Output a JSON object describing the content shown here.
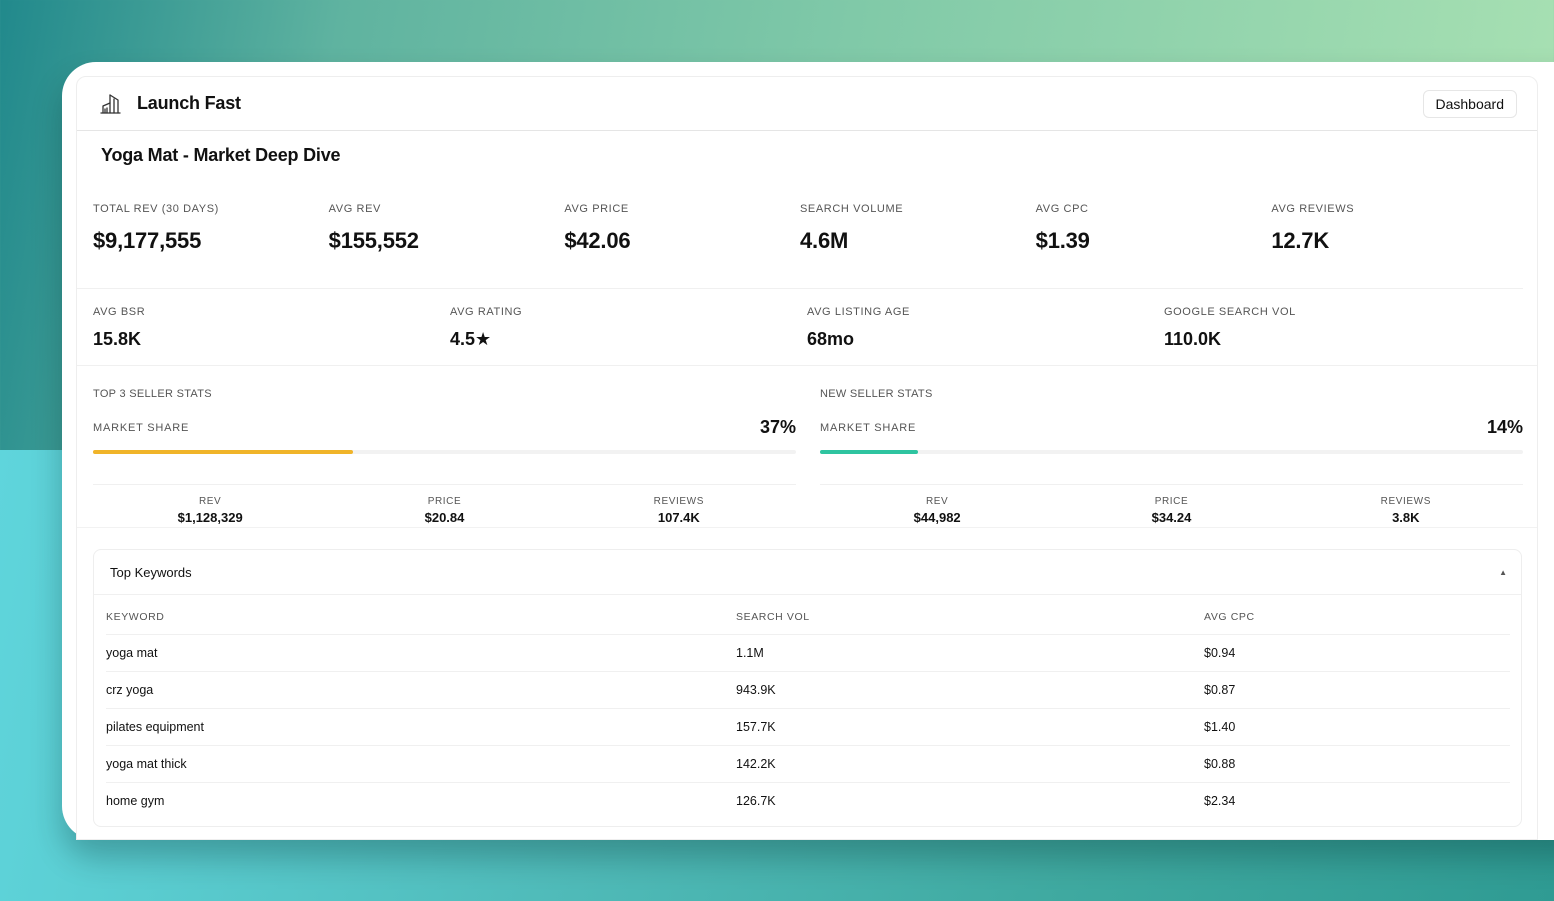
{
  "app": {
    "title": "Launch Fast",
    "logo_icon": "building-chart-icon",
    "dashboard_button": "Dashboard"
  },
  "page": {
    "title": "Yoga Mat - Market Deep Dive"
  },
  "stats_primary": [
    {
      "label": "TOTAL REV (30 DAYS)",
      "value": "$9,177,555"
    },
    {
      "label": "AVG REV",
      "value": "$155,552"
    },
    {
      "label": "AVG PRICE",
      "value": "$42.06"
    },
    {
      "label": "SEARCH VOLUME",
      "value": "4.6M"
    },
    {
      "label": "AVG CPC",
      "value": "$1.39"
    },
    {
      "label": "AVG REVIEWS",
      "value": "12.7K"
    }
  ],
  "stats_secondary": [
    {
      "label": "AVG BSR",
      "value": "15.8K"
    },
    {
      "label": "AVG RATING",
      "value": "4.5★"
    },
    {
      "label": "AVG LISTING AGE",
      "value": "68mo"
    },
    {
      "label": "GOOGLE SEARCH VOL",
      "value": "110.0K"
    }
  ],
  "top_sellers": {
    "title": "TOP 3 SELLER STATS",
    "share_label": "MARKET SHARE",
    "share_value": "37%",
    "share_percent": 37,
    "bar_color": "#f0b429",
    "stats": [
      {
        "label": "REV",
        "value": "$1,128,329"
      },
      {
        "label": "PRICE",
        "value": "$20.84"
      },
      {
        "label": "REVIEWS",
        "value": "107.4K"
      }
    ]
  },
  "new_sellers": {
    "title": "NEW SELLER STATS",
    "share_label": "MARKET SHARE",
    "share_value": "14%",
    "share_percent": 14,
    "bar_color": "#2ec4a0",
    "stats": [
      {
        "label": "REV",
        "value": "$44,982"
      },
      {
        "label": "PRICE",
        "value": "$34.24"
      },
      {
        "label": "REVIEWS",
        "value": "3.8K"
      }
    ]
  },
  "keywords": {
    "title": "Top Keywords",
    "toggle_icon": "caret-up-icon",
    "toggle_glyph": "▲",
    "columns": [
      "KEYWORD",
      "SEARCH VOL",
      "AVG CPC"
    ],
    "rows": [
      {
        "keyword": "yoga mat",
        "search_vol": "1.1M",
        "avg_cpc": "$0.94"
      },
      {
        "keyword": "crz yoga",
        "search_vol": "943.9K",
        "avg_cpc": "$0.87"
      },
      {
        "keyword": "pilates equipment",
        "search_vol": "157.7K",
        "avg_cpc": "$1.40"
      },
      {
        "keyword": "yoga mat thick",
        "search_vol": "142.2K",
        "avg_cpc": "$0.88"
      },
      {
        "keyword": "home gym",
        "search_vol": "126.7K",
        "avg_cpc": "$2.34"
      }
    ]
  }
}
